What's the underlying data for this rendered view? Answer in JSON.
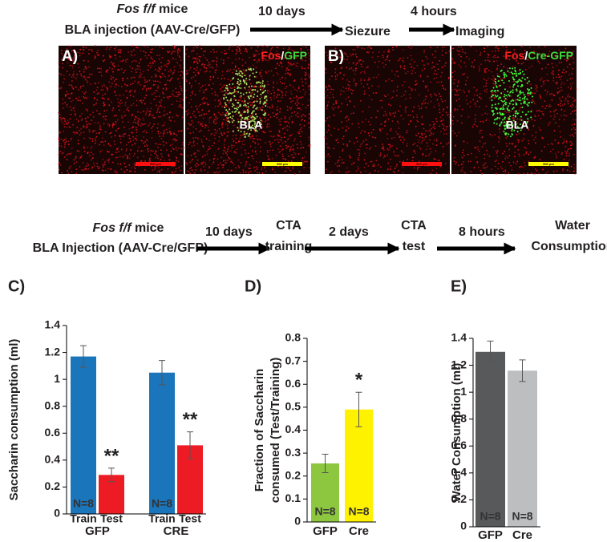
{
  "timeline_1": {
    "strain_italic": "Fos f/f",
    "strain": "mice",
    "injection": "BLA injection (AAV-Cre/GFP)",
    "steps": [
      {
        "interval": "10 days",
        "event": [
          "Siezure"
        ]
      },
      {
        "interval": "4 hours",
        "event": [
          "Imaging"
        ]
      }
    ]
  },
  "images": {
    "separator": "/",
    "panels": [
      {
        "label": "A)",
        "stain_1": "Fos",
        "stain_2": "GFP",
        "region": "BLA",
        "scale_bars": [
          "500 μm",
          "500 μm"
        ]
      },
      {
        "label": "B)",
        "stain_1": "Fos",
        "stain_2": "Cre-GFP",
        "region": "BLA",
        "scale_bars": [
          "500 μm",
          "500 μm"
        ]
      }
    ]
  },
  "timeline_2": {
    "strain_italic": "Fos f/f",
    "strain": "mice",
    "injection": "BLA Injection (AAV-Cre/GFP)",
    "steps": [
      {
        "interval": "10 days",
        "event": [
          "CTA",
          "training"
        ]
      },
      {
        "interval": "2 days",
        "event": [
          "CTA",
          "test"
        ]
      },
      {
        "interval": "8 hours",
        "event": [
          "Water",
          "Consumption"
        ]
      }
    ]
  },
  "chart_data": [
    {
      "type": "bar",
      "panel_label": "C)",
      "ylabel": [
        "Saccharin consumption (ml)"
      ],
      "categories": [
        "GFP",
        "CRE"
      ],
      "series": [
        {
          "name": "Train",
          "color": "#1b75bb",
          "values": [
            1.17,
            1.05
          ],
          "errors": [
            0.08,
            0.09
          ],
          "n_labels": [
            "N=8",
            "N=8"
          ]
        },
        {
          "name": "Test",
          "color": "#ed1c24",
          "values": [
            0.29,
            0.51
          ],
          "errors": [
            0.05,
            0.1
          ],
          "significance": [
            "**",
            "**"
          ]
        }
      ],
      "ylim": [
        0,
        1.4
      ],
      "yticks": [
        0,
        0.2,
        0.4,
        0.6,
        0.8,
        1,
        1.2,
        1.4
      ]
    },
    {
      "type": "bar",
      "panel_label": "D)",
      "ylabel": [
        "Fraction of Saccharin",
        "consumed (Test/Training)"
      ],
      "categories": [
        "GFP",
        "Cre"
      ],
      "values": [
        0.255,
        0.49
      ],
      "errors": [
        0.04,
        0.075
      ],
      "colors": [
        "#8dc63f",
        "#fff200"
      ],
      "n_labels": [
        "N=8",
        "N=8"
      ],
      "significance": [
        null,
        "*"
      ],
      "ylim": [
        0,
        0.8
      ],
      "yticks": [
        0,
        0.1,
        0.2,
        0.3,
        0.4,
        0.5,
        0.6,
        0.7,
        0.8
      ]
    },
    {
      "type": "bar",
      "panel_label": "E)",
      "ylabel": [
        "Water Consumption (ml)"
      ],
      "categories": [
        "GFP",
        "Cre"
      ],
      "values": [
        1.3,
        1.16
      ],
      "errors": [
        0.08,
        0.08
      ],
      "colors": [
        "#58595b",
        "#bcbec0"
      ],
      "n_labels": [
        "N=8",
        "N=8"
      ],
      "ylim": [
        0,
        1.4
      ],
      "yticks": [
        0,
        0.2,
        0.4,
        0.6,
        0.8,
        1,
        1.2,
        1.4
      ]
    }
  ]
}
